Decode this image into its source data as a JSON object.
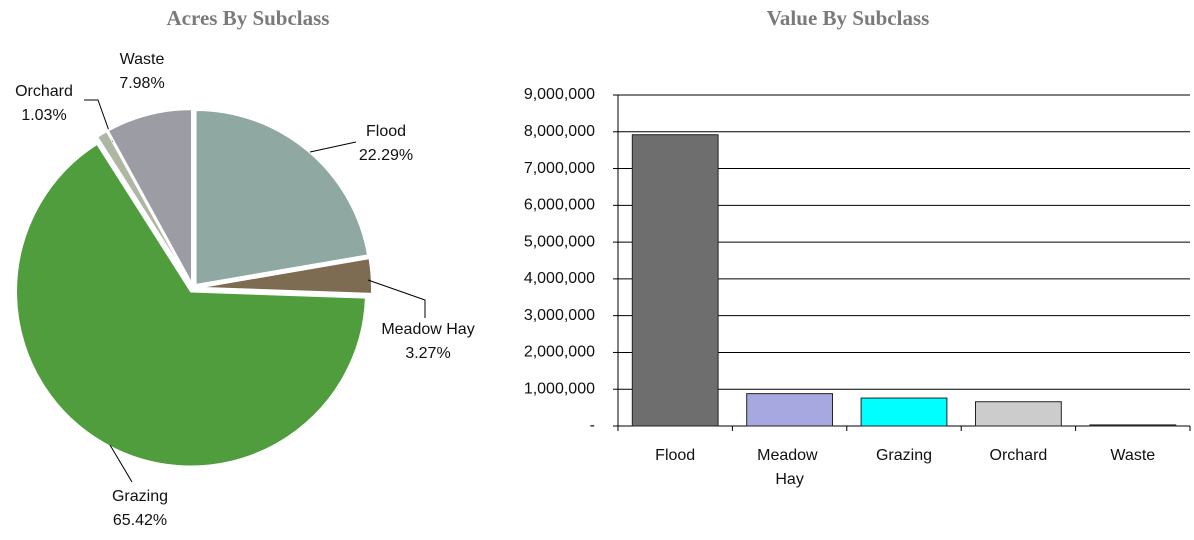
{
  "chart_data": [
    {
      "type": "pie",
      "title": "Acres By Subclass",
      "categories": [
        "Flood",
        "Meadow Hay",
        "Grazing",
        "Orchard",
        "Waste"
      ],
      "values": [
        22.29,
        3.27,
        65.42,
        1.03,
        7.98
      ],
      "value_labels": [
        "22.29%",
        "3.27%",
        "65.42%",
        "1.03%",
        "7.98%"
      ],
      "colors": [
        "#8fa9a2",
        "#7d6c52",
        "#4f9d3c",
        "#aeb7a4",
        "#9c9ca4"
      ]
    },
    {
      "type": "bar",
      "title": "Value By Subclass",
      "categories": [
        "Flood",
        "Meadow Hay",
        "Grazing",
        "Orchard",
        "Waste"
      ],
      "values": [
        7920000,
        880000,
        760000,
        660000,
        30000
      ],
      "colors": [
        "#6e6e6e",
        "#a8a8e0",
        "#00ffff",
        "#cccccc",
        "#333333"
      ],
      "ylim": [
        0,
        9000000
      ],
      "yticks": [
        {
          "value": 0,
          "label": "-"
        },
        {
          "value": 1000000,
          "label": "1,000,000"
        },
        {
          "value": 2000000,
          "label": "2,000,000"
        },
        {
          "value": 3000000,
          "label": "3,000,000"
        },
        {
          "value": 4000000,
          "label": "4,000,000"
        },
        {
          "value": 5000000,
          "label": "5,000,000"
        },
        {
          "value": 6000000,
          "label": "6,000,000"
        },
        {
          "value": 7000000,
          "label": "7,000,000"
        },
        {
          "value": 8000000,
          "label": "8,000,000"
        },
        {
          "value": 9000000,
          "label": "9,000,000"
        }
      ],
      "grid": true
    }
  ]
}
